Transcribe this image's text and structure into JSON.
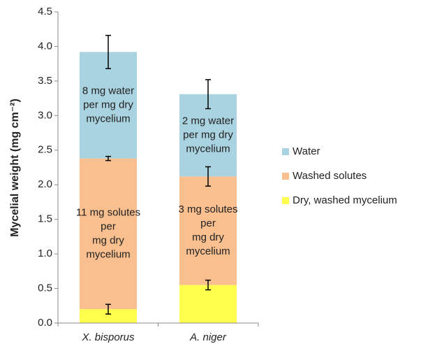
{
  "chart_data": {
    "type": "stacked_bar",
    "y_label": "Mycelial weight (mg cm⁻²)",
    "categories": [
      "X. bisporus",
      "A. niger"
    ],
    "series": [
      {
        "name": "Dry, washed mycelium",
        "color": "#ffff4d",
        "values": [
          0.2,
          0.55
        ],
        "errors": [
          0.07,
          0.07
        ]
      },
      {
        "name": "Washed solutes",
        "color": "#f9bf8f",
        "values": [
          2.18,
          1.57
        ],
        "errors": [
          0.03,
          0.14
        ],
        "labels": [
          [
            "11 mg solutes",
            "per",
            "mg dry",
            "mycelium"
          ],
          [
            "3 mg solutes",
            "per",
            "mg dry",
            "mycelium"
          ]
        ]
      },
      {
        "name": "Water",
        "color": "#a9d3e0",
        "values": [
          1.54,
          1.19
        ],
        "errors": [
          0.24,
          0.21
        ],
        "labels": [
          [
            "8 mg water",
            "per mg dry",
            "mycelium"
          ],
          [
            "2 mg water",
            "per mg dry",
            "mycelium"
          ]
        ]
      }
    ],
    "ylim": [
      0,
      4.5
    ],
    "yticks": [
      {
        "value": 0,
        "label": "0.0"
      },
      0.5,
      {
        "value": 1,
        "label": "1.0"
      },
      1.5,
      {
        "value": 2,
        "label": "2.0"
      },
      2.5,
      {
        "value": 3,
        "label": "3.0"
      },
      3.5,
      {
        "value": 4,
        "label": "4.0"
      },
      4.5
    ],
    "legend": "right"
  }
}
